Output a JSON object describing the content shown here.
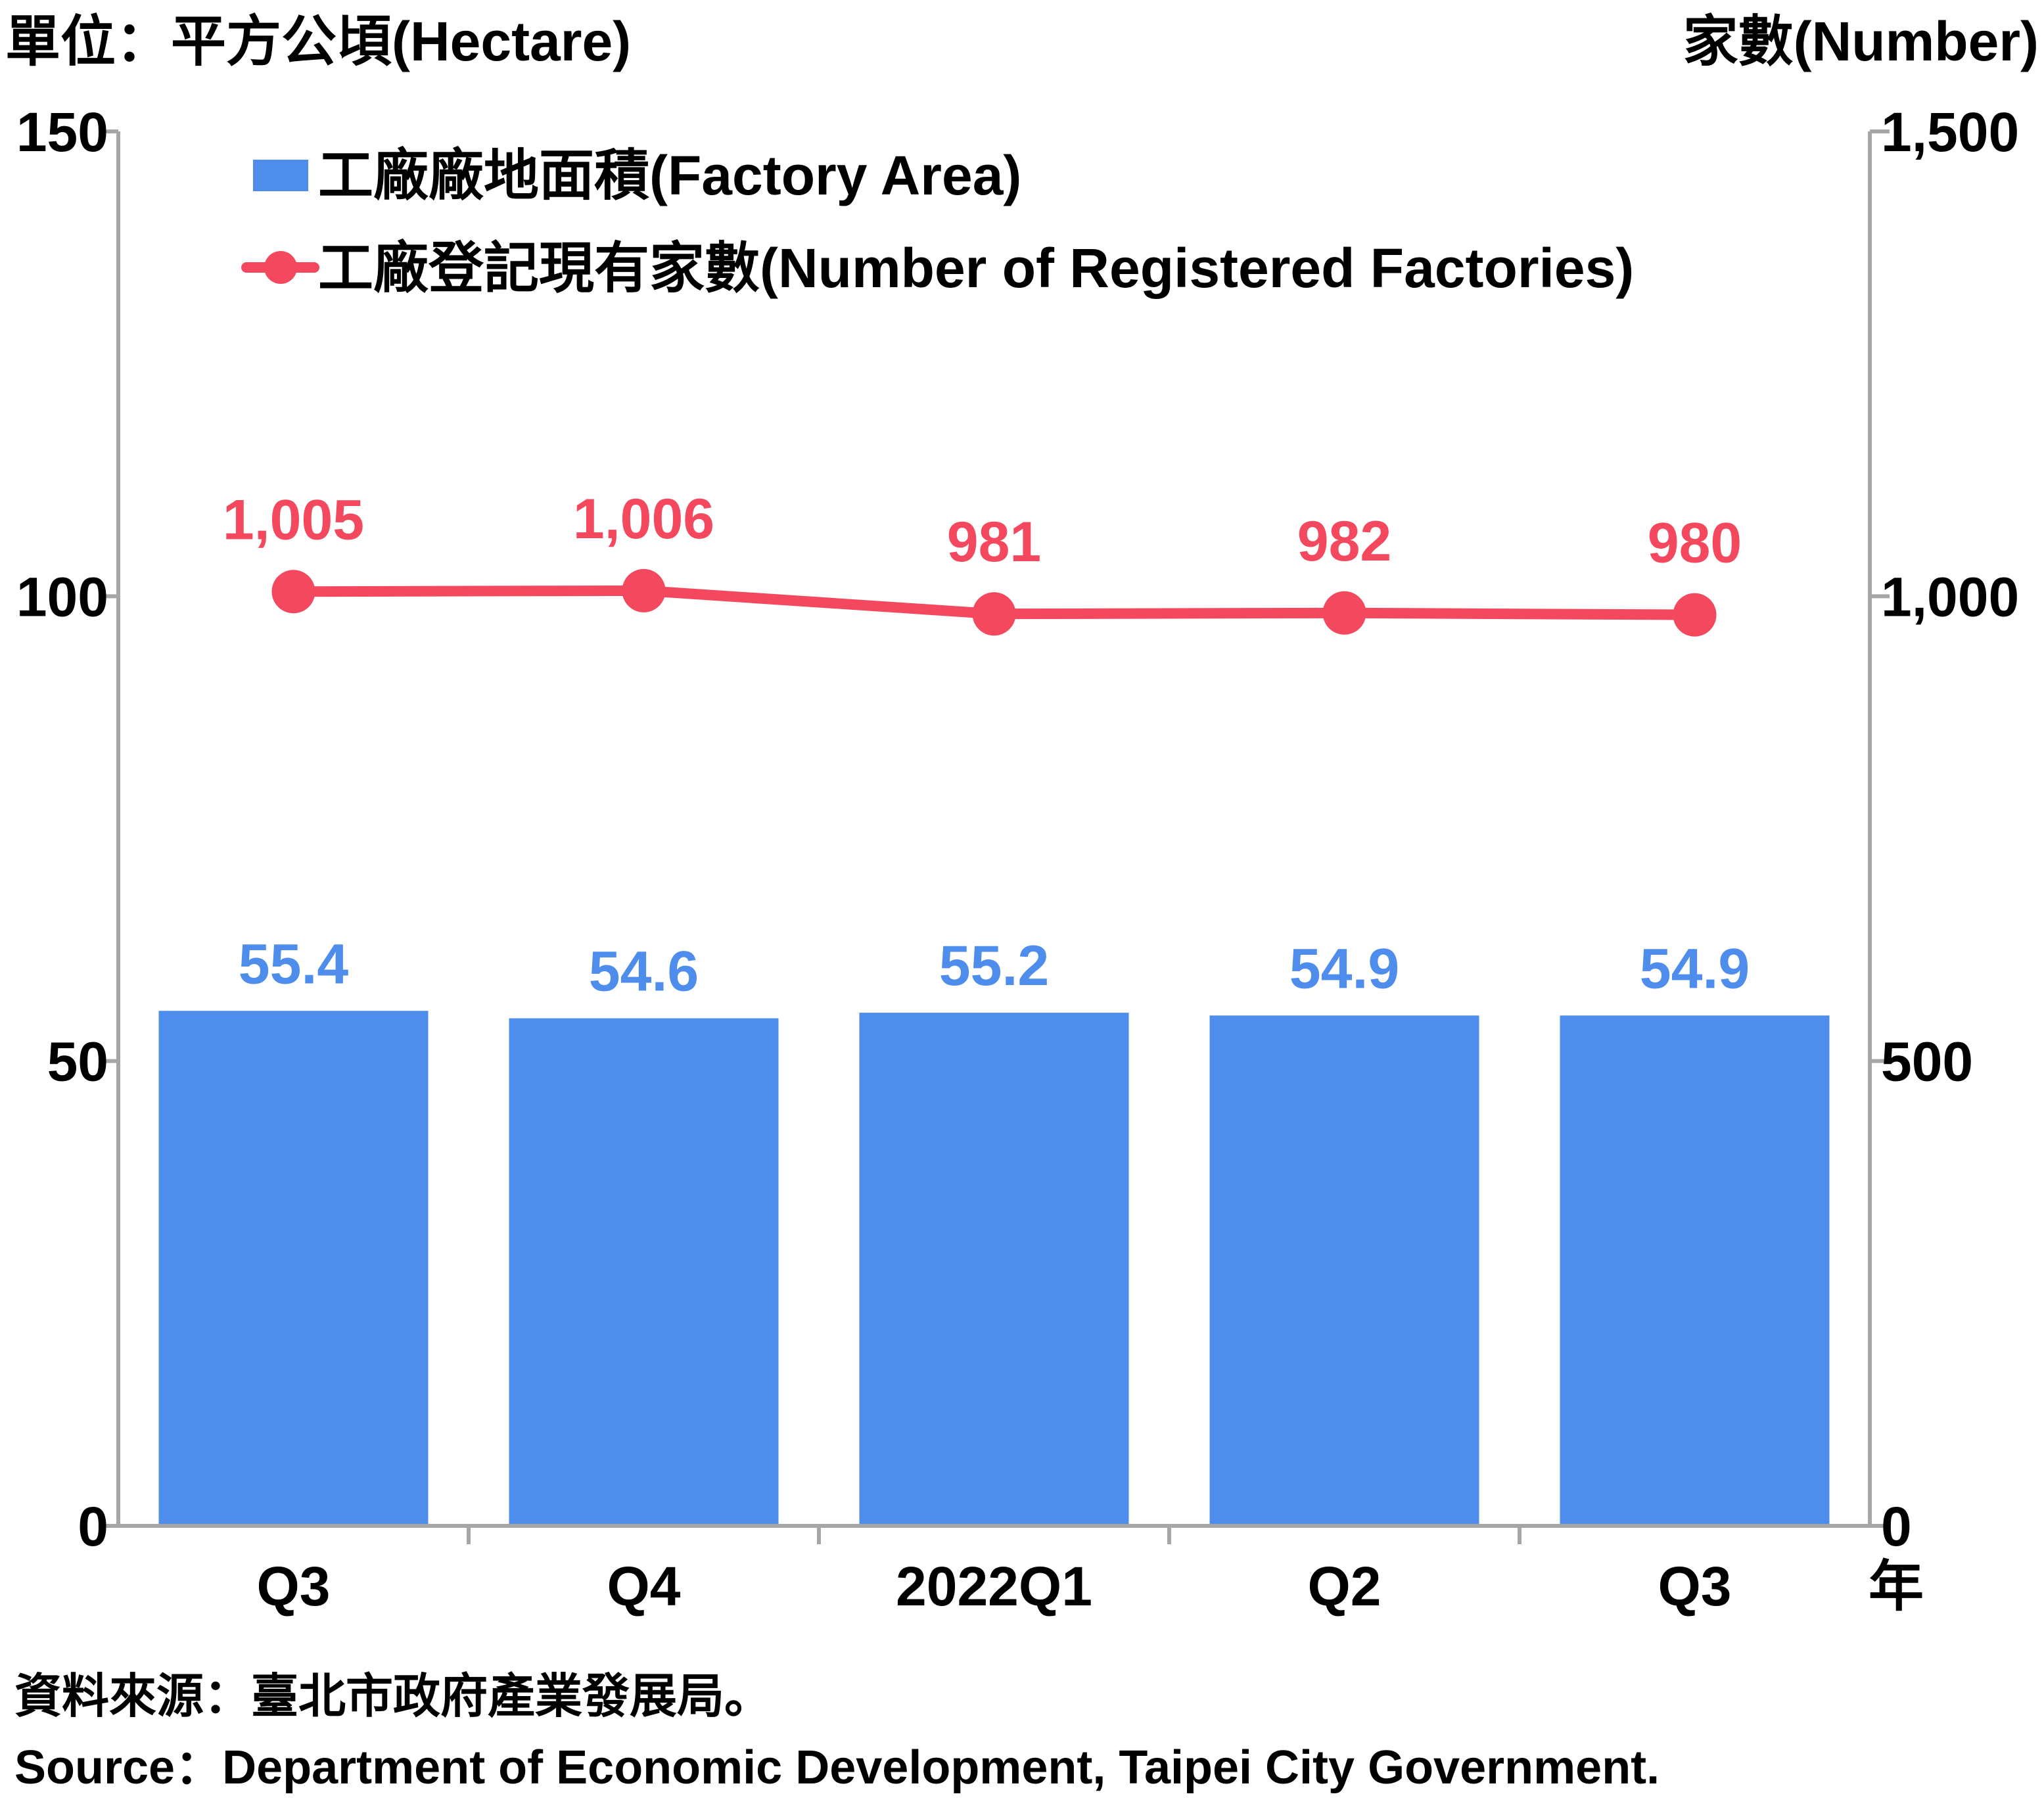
{
  "chart_data": {
    "type": "bar",
    "left_axis_unit": "單位：平方公頃(Hectare)",
    "right_axis_unit": "家數(Number)",
    "x_axis_suffix": "年",
    "categories": [
      "Q3",
      "Q4",
      "2022Q1",
      "Q2",
      "Q3"
    ],
    "left_ylim": [
      0,
      150
    ],
    "left_ticks": [
      {
        "value": 0,
        "label": "0"
      },
      {
        "value": 50,
        "label": "50"
      },
      {
        "value": 100,
        "label": "100"
      },
      {
        "value": 150,
        "label": "150"
      }
    ],
    "right_ylim": [
      0,
      1500
    ],
    "right_ticks": [
      {
        "value": 0,
        "label": "0"
      },
      {
        "value": 500,
        "label": "500"
      },
      {
        "value": 1000,
        "label": "1,000"
      },
      {
        "value": 1500,
        "label": "1,500"
      }
    ],
    "series": [
      {
        "name": "工廠廠地面積(Factory Area)",
        "type": "bar",
        "axis": "left",
        "color": "#4f8ded",
        "values": [
          55.4,
          54.6,
          55.2,
          54.9,
          54.9
        ],
        "labels": [
          "55.4",
          "54.6",
          "55.2",
          "54.9",
          "54.9"
        ]
      },
      {
        "name": "工廠登記現有家數(Number of Registered Factories)",
        "type": "line",
        "axis": "right",
        "color": "#f4485e",
        "values": [
          1005,
          1006,
          981,
          982,
          980
        ],
        "labels": [
          "1,005",
          "1,006",
          "981",
          "982",
          "980"
        ]
      }
    ],
    "grid": false,
    "legend_position": "top-left"
  },
  "source": {
    "zh": "資料來源：臺北市政府產業發展局。",
    "en": "Source：Department of Economic Development, Taipei City Government."
  }
}
